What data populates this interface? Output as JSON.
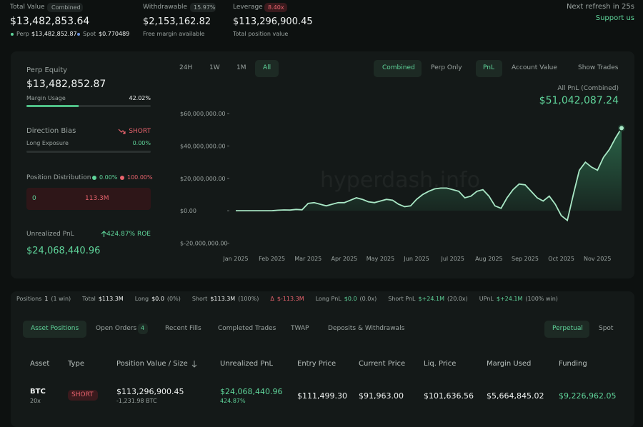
{
  "header": {
    "total_value": {
      "label": "Total Value",
      "badge": "Combined",
      "value": "$13,482,853.64",
      "perp_label": "Perp",
      "perp_value": "$13,482,852.87",
      "spot_label": "Spot",
      "spot_value": "$0.770489"
    },
    "withdrawable": {
      "label": "Withdrawable",
      "badge": "15.97%",
      "value": "$2,153,162.82",
      "note": "Free margin available"
    },
    "leverage": {
      "label": "Leverage",
      "badge": "8.40x",
      "value": "$113,296,900.45",
      "note": "Total position value"
    },
    "refresh": "Next refresh in 25s",
    "support": "Support us"
  },
  "summary": {
    "perp_equity_label": "Perp Equity",
    "perp_equity": "$13,482,852.87",
    "margin_usage_label": "Margin Usage",
    "margin_usage": {
      "value": 42.02,
      "label": "42.02%"
    },
    "direction_bias_label": "Direction Bias",
    "direction_bias": "SHORT",
    "long_exposure_label": "Long Exposure",
    "long_exposure": {
      "value": 0,
      "label": "0.00%"
    },
    "distribution_label": "Position Distribution",
    "distribution_long": {
      "value": 0,
      "label": "0.00%"
    },
    "distribution_short": {
      "value": 100,
      "label": "100.00%"
    },
    "distribution_long_amount": "0",
    "distribution_short_amount": "113.3M",
    "unrealized_pnl_label": "Unrealized PnL",
    "roe": "424.87% ROE",
    "unrealized_pnl": "$24,068,440.96"
  },
  "chart_controls": {
    "ranges": [
      "24H",
      "1W",
      "1M",
      "All"
    ],
    "modes": [
      "Combined",
      "Perp Only"
    ],
    "views": [
      "PnL",
      "Account Value"
    ],
    "show_trades": "Show Trades"
  },
  "pnl_chart": {
    "type": "line",
    "title": "All PnL (Combined)",
    "headline": "$51,042,087.24",
    "watermark": "hyperdash.info",
    "color": "#a9e8c6",
    "categories": [
      "Jan 2025",
      null,
      null,
      null,
      null,
      null,
      "Feb 2025",
      null,
      null,
      null,
      null,
      null,
      "Mar 2025",
      null,
      null,
      null,
      null,
      null,
      "Apr 2025",
      null,
      null,
      null,
      null,
      null,
      "May 2025",
      null,
      null,
      null,
      null,
      null,
      "Jun 2025",
      null,
      null,
      null,
      null,
      null,
      "Jul 2025",
      null,
      null,
      null,
      null,
      null,
      "Aug 2025",
      null,
      null,
      null,
      null,
      null,
      "Sep 2025",
      null,
      null,
      null,
      null,
      null,
      "Oct 2025",
      null,
      null,
      null,
      null,
      null,
      "Nov 2025",
      null,
      null,
      null,
      null
    ],
    "values": [
      0,
      0,
      0,
      0,
      0,
      0,
      0,
      300000,
      500000,
      400000,
      800000,
      600000,
      4500000,
      5000000,
      4000000,
      3000000,
      4000000,
      5000000,
      5000000,
      6500000,
      8000000,
      7000000,
      5500000,
      5000000,
      6000000,
      7000000,
      6500000,
      4000000,
      2500000,
      3000000,
      7000000,
      10000000,
      12000000,
      13500000,
      14000000,
      14000000,
      13000000,
      12000000,
      8000000,
      9000000,
      12000000,
      13000000,
      9000000,
      3000000,
      1500000,
      8000000,
      13000000,
      16500000,
      16000000,
      12000000,
      8000000,
      6000000,
      9000000,
      4000000,
      -3000000,
      -6000000,
      10000000,
      25000000,
      30000000,
      27000000,
      25000000,
      33000000,
      38000000,
      45000000,
      51042087.24
    ],
    "ylim": [
      -22000000,
      64000000
    ],
    "yticks": [
      {
        "value": 60000000,
        "label": "$60,000,000.00"
      },
      {
        "value": 40000000,
        "label": "$40,000,000.00"
      },
      {
        "value": 20000000,
        "label": "$20,000,000.00"
      },
      {
        "value": 0,
        "label": "$0.00"
      },
      {
        "value": -20000000,
        "label": "$-20,000,000.00"
      }
    ]
  },
  "stats": {
    "positions_label": "Positions",
    "positions": "1",
    "positions_note": "(1 win)",
    "total_label": "Total",
    "total": "$113.3M",
    "long_label": "Long",
    "long": "$0.0",
    "long_note": "(0%)",
    "short_label": "Short",
    "short": "$113.3M",
    "short_note": "(100%)",
    "delta_label": "Δ",
    "delta": "$-113.3M",
    "long_pnl_label": "Long PnL",
    "long_pnl": "$0.0",
    "long_pnl_note": "(0.0x)",
    "short_pnl_label": "Short PnL",
    "short_pnl": "$+24.1M",
    "short_pnl_note": "(20.0x)",
    "upnl_label": "UPnL",
    "upnl": "$+24.1M",
    "upnl_note": "(100% win)"
  },
  "tabs": {
    "items": [
      "Asset Positions",
      "Open Orders",
      "Recent Fills",
      "Completed Trades",
      "TWAP",
      "Deposits & Withdrawals"
    ],
    "open_orders_count": "4",
    "markets": [
      "Perpetual",
      "Spot"
    ]
  },
  "table": {
    "columns": [
      "Asset",
      "Type",
      "Position Value / Size",
      "Unrealized PnL",
      "Entry Price",
      "Current Price",
      "Liq. Price",
      "Margin Used",
      "Funding"
    ],
    "rows": [
      {
        "asset": "BTC",
        "leverage": "20x",
        "type": "SHORT",
        "position_value": "$113,296,900.45",
        "size": "-1,231.98 BTC",
        "unrealized_pnl": "$24,068,440.96",
        "pnl_pct": "424.87%",
        "entry_price": "$111,499.30",
        "current_price": "$91,963.00",
        "liq_price": "$101,636.56",
        "margin_used": "$5,664,845.02",
        "funding": "$9,226,962.05"
      }
    ]
  }
}
